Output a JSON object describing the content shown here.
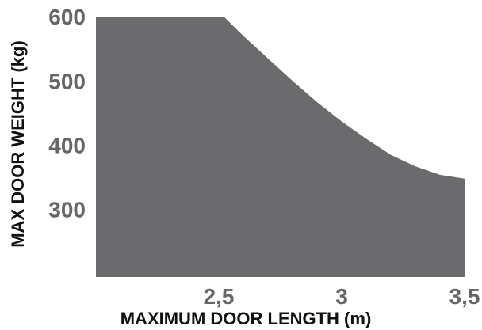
{
  "chart_data": {
    "type": "area",
    "title": "",
    "xlabel": "MAXIMUM DOOR LENGTH (m)",
    "ylabel": "MAX DOOR WEIGHT (kg)",
    "x_ticks": [
      {
        "value": 2.5,
        "label": "2,5"
      },
      {
        "value": 3.0,
        "label": "3"
      },
      {
        "value": 3.5,
        "label": "3,5"
      }
    ],
    "y_ticks": [
      {
        "value": 300,
        "label": "300"
      },
      {
        "value": 400,
        "label": "400"
      },
      {
        "value": 500,
        "label": "500"
      },
      {
        "value": 600,
        "label": "600"
      }
    ],
    "xlim": [
      2.0,
      3.5
    ],
    "ylim": [
      195,
      605
    ],
    "grid": false,
    "fill_color": "#6b6b6e",
    "series": [
      {
        "x": [
          2.0,
          2.52,
          2.6,
          2.7,
          2.8,
          2.9,
          3.0,
          3.1,
          3.2,
          3.3,
          3.4,
          3.5
        ],
        "values": [
          600,
          600,
          570,
          535,
          500,
          467,
          437,
          410,
          385,
          367,
          354,
          348
        ]
      }
    ]
  }
}
